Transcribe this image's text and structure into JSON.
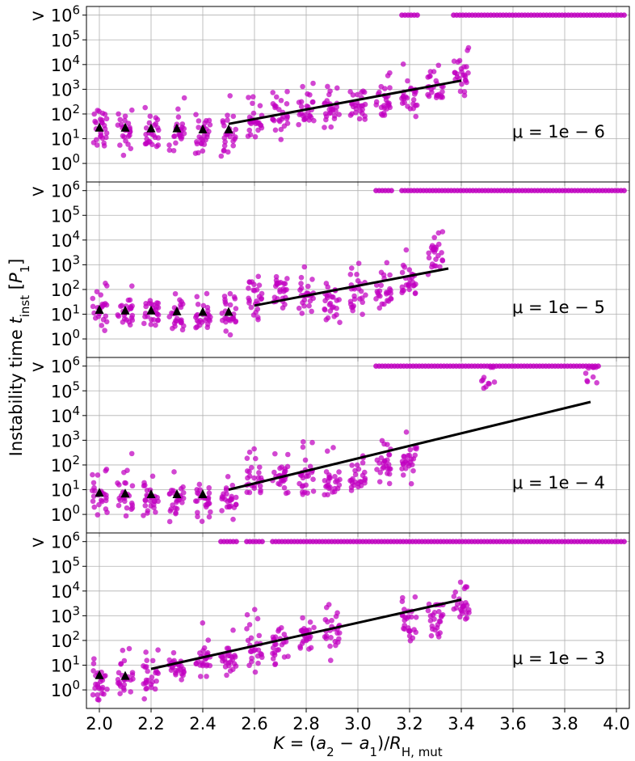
{
  "figure": {
    "ylabel": "Instability time t_inst [P_1]",
    "xlabel": "K = (a_2 − a_1)/R_H,mut"
  },
  "chart_data": [
    {
      "type": "scatter",
      "annotation": "μ = 1e − 6",
      "mu_exponent": -6,
      "xlim": [
        1.95,
        4.05
      ],
      "ylim_log10": [
        -0.75,
        6.35
      ],
      "xticks": [
        2.0,
        2.2,
        2.4,
        2.6,
        2.8,
        3.0,
        3.2,
        3.4,
        3.6,
        3.8,
        4.0
      ],
      "yticks": [
        {
          "log10": 0,
          "base": "10",
          "exp": "0",
          "prefix": ""
        },
        {
          "log10": 1,
          "base": "10",
          "exp": "1",
          "prefix": ""
        },
        {
          "log10": 2,
          "base": "10",
          "exp": "2",
          "prefix": ""
        },
        {
          "log10": 3,
          "base": "10",
          "exp": "3",
          "prefix": ""
        },
        {
          "log10": 4,
          "base": "10",
          "exp": "4",
          "prefix": ""
        },
        {
          "log10": 5,
          "base": "10",
          "exp": "5",
          "prefix": ""
        },
        {
          "log10": 6,
          "base": "10",
          "exp": "6",
          "prefix": "> "
        }
      ],
      "grid": true,
      "point_color": "#c000c0",
      "medians_x": [
        2.0,
        2.1,
        2.2,
        2.3,
        2.4,
        2.5
      ],
      "medians_log10": [
        1.45,
        1.45,
        1.42,
        1.42,
        1.38,
        1.38
      ],
      "fit_line": {
        "x": [
          2.5,
          3.4
        ],
        "log10": [
          1.6,
          3.35
        ]
      },
      "clusters_log10": {
        "2.0": 1.3,
        "2.1": 1.25,
        "2.2": 1.2,
        "2.3": 1.2,
        "2.4": 1.15,
        "2.5": 1.15,
        "2.6": 1.6,
        "2.7": 2.0,
        "2.8": 2.1,
        "2.9": 2.2,
        "3.0": 2.3,
        "3.1": 2.5,
        "3.2": 2.7,
        "3.3": 2.9,
        "3.4": 3.5
      },
      "censored_x_ranges": [
        [
          3.2,
          3.2
        ],
        [
          3.4,
          4.0
        ]
      ],
      "censored_log10": 6
    },
    {
      "type": "scatter",
      "annotation": "μ = 1e − 5",
      "mu_exponent": -5,
      "xlim": [
        1.95,
        4.05
      ],
      "ylim_log10": [
        -0.75,
        6.35
      ],
      "xticks": [
        2.0,
        2.2,
        2.4,
        2.6,
        2.8,
        3.0,
        3.2,
        3.4,
        3.6,
        3.8,
        4.0
      ],
      "yticks": [
        {
          "log10": 0,
          "base": "10",
          "exp": "0",
          "prefix": ""
        },
        {
          "log10": 1,
          "base": "10",
          "exp": "1",
          "prefix": ""
        },
        {
          "log10": 2,
          "base": "10",
          "exp": "2",
          "prefix": ""
        },
        {
          "log10": 3,
          "base": "10",
          "exp": "3",
          "prefix": ""
        },
        {
          "log10": 4,
          "base": "10",
          "exp": "4",
          "prefix": ""
        },
        {
          "log10": 5,
          "base": "10",
          "exp": "5",
          "prefix": ""
        },
        {
          "log10": 6,
          "base": "10",
          "exp": "6",
          "prefix": "> "
        }
      ],
      "grid": true,
      "point_color": "#c000c0",
      "medians_x": [
        2.0,
        2.1,
        2.2,
        2.3,
        2.4,
        2.5
      ],
      "medians_log10": [
        1.18,
        1.15,
        1.15,
        1.12,
        1.1,
        1.1
      ],
      "fit_line": {
        "x": [
          2.6,
          3.35
        ],
        "log10": [
          1.35,
          2.85
        ]
      },
      "clusters_log10": {
        "2.0": 1.05,
        "2.1": 1.0,
        "2.2": 0.95,
        "2.3": 0.95,
        "2.4": 0.9,
        "2.5": 0.95,
        "2.6": 1.6,
        "2.7": 1.9,
        "2.8": 1.7,
        "2.9": 1.5,
        "3.0": 1.7,
        "3.1": 1.9,
        "3.2": 2.4,
        "3.3": 3.3
      },
      "censored_x_ranges": [
        [
          3.1,
          3.1
        ],
        [
          3.2,
          4.0
        ]
      ],
      "censored_log10": 6
    },
    {
      "type": "scatter",
      "annotation": "μ = 1e − 4",
      "mu_exponent": -4,
      "xlim": [
        1.95,
        4.05
      ],
      "ylim_log10": [
        -0.75,
        6.35
      ],
      "xticks": [
        2.0,
        2.2,
        2.4,
        2.6,
        2.8,
        3.0,
        3.2,
        3.4,
        3.6,
        3.8,
        4.0
      ],
      "yticks": [
        {
          "log10": 0,
          "base": "10",
          "exp": "0",
          "prefix": ""
        },
        {
          "log10": 1,
          "base": "10",
          "exp": "1",
          "prefix": ""
        },
        {
          "log10": 2,
          "base": "10",
          "exp": "2",
          "prefix": ""
        },
        {
          "log10": 3,
          "base": "10",
          "exp": "3",
          "prefix": ""
        },
        {
          "log10": 4,
          "base": "10",
          "exp": "4",
          "prefix": ""
        },
        {
          "log10": 5,
          "base": "10",
          "exp": "5",
          "prefix": ""
        },
        {
          "log10": 6,
          "base": "10",
          "exp": "6",
          "prefix": "> "
        }
      ],
      "grid": true,
      "point_color": "#c000c0",
      "medians_x": [
        2.0,
        2.1,
        2.2,
        2.3,
        2.4
      ],
      "medians_log10": [
        0.88,
        0.85,
        0.82,
        0.82,
        0.82
      ],
      "fit_line": {
        "x": [
          2.5,
          3.9
        ],
        "log10": [
          1.0,
          4.55
        ]
      },
      "clusters_log10": {
        "2.0": 0.7,
        "2.1": 0.65,
        "2.2": 0.6,
        "2.3": 0.6,
        "2.4": 0.6,
        "2.5": 0.7,
        "2.6": 1.4,
        "2.7": 1.5,
        "2.8": 1.55,
        "2.9": 1.3,
        "3.0": 1.5,
        "3.1": 1.9,
        "3.2": 2.3,
        "3.5": 5.5,
        "3.9": 5.8
      },
      "censored_x_ranges": [
        [
          3.1,
          3.9
        ]
      ],
      "censored_log10": 6
    },
    {
      "type": "scatter",
      "annotation": "μ = 1e − 3",
      "mu_exponent": -3,
      "xlim": [
        1.95,
        4.05
      ],
      "ylim_log10": [
        -0.75,
        6.35
      ],
      "xticks": [
        2.0,
        2.2,
        2.4,
        2.6,
        2.8,
        3.0,
        3.2,
        3.4,
        3.6,
        3.8,
        4.0
      ],
      "yticks": [
        {
          "log10": 0,
          "base": "10",
          "exp": "0",
          "prefix": ""
        },
        {
          "log10": 1,
          "base": "10",
          "exp": "1",
          "prefix": ""
        },
        {
          "log10": 2,
          "base": "10",
          "exp": "2",
          "prefix": ""
        },
        {
          "log10": 3,
          "base": "10",
          "exp": "3",
          "prefix": ""
        },
        {
          "log10": 4,
          "base": "10",
          "exp": "4",
          "prefix": ""
        },
        {
          "log10": 5,
          "base": "10",
          "exp": "5",
          "prefix": ""
        },
        {
          "log10": 6,
          "base": "10",
          "exp": "6",
          "prefix": "> "
        }
      ],
      "grid": true,
      "point_color": "#c000c0",
      "medians_x": [
        2.0,
        2.1
      ],
      "medians_log10": [
        0.6,
        0.57
      ],
      "fit_line": {
        "x": [
          2.2,
          3.4
        ],
        "log10": [
          0.85,
          3.65
        ]
      },
      "clusters_log10": {
        "2.0": 0.3,
        "2.1": 0.35,
        "2.2": 0.5,
        "2.3": 0.8,
        "2.4": 1.15,
        "2.5": 1.1,
        "2.6": 1.6,
        "2.7": 1.7,
        "2.8": 2.2,
        "2.9": 2.3,
        "3.2": 2.7,
        "3.3": 2.9,
        "3.4": 3.4
      },
      "censored_x_ranges": [
        [
          2.5,
          2.5
        ],
        [
          2.6,
          2.6
        ],
        [
          2.7,
          4.0
        ]
      ],
      "censored_log10": 6
    }
  ]
}
